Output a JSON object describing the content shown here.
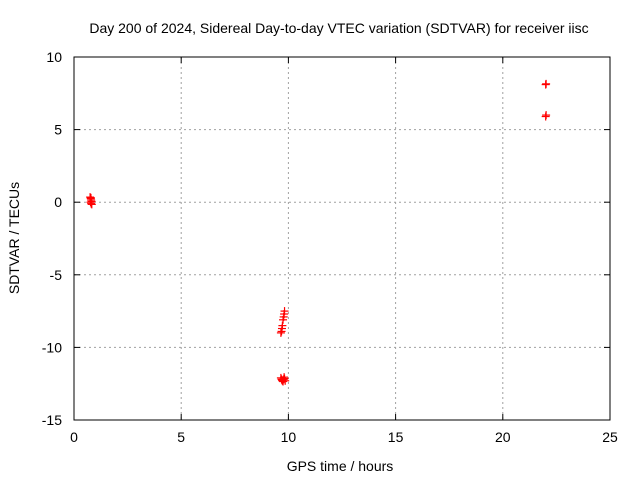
{
  "chart_data": {
    "type": "scatter",
    "title": "Day 200 of 2024, Sidereal Day-to-day VTEC variation (SDTVAR) for receiver iisc",
    "xlabel": "GPS time / hours",
    "ylabel": "SDTVAR / TECUs",
    "xlim": [
      0,
      25
    ],
    "ylim": [
      -15,
      10
    ],
    "x_ticks": [
      0,
      5,
      10,
      15,
      20,
      25
    ],
    "y_ticks": [
      -15,
      -10,
      -5,
      0,
      5,
      10
    ],
    "x_tick_labels": [
      "0",
      "5",
      "10",
      "15",
      "20",
      "25"
    ],
    "y_tick_labels": [
      "-15",
      "-10",
      "-5",
      "0",
      "5",
      "10"
    ],
    "grid": true,
    "marker": "plus",
    "series_color": "#ff0000",
    "points": [
      [
        0.75,
        0.35
      ],
      [
        0.78,
        0.25
      ],
      [
        0.8,
        0.15
      ],
      [
        0.82,
        0.05
      ],
      [
        0.77,
        0.0
      ],
      [
        0.8,
        -0.1
      ],
      [
        0.83,
        -0.15
      ],
      [
        0.79,
        0.3
      ],
      [
        9.65,
        -9.0
      ],
      [
        9.68,
        -8.9
      ],
      [
        9.7,
        -8.7
      ],
      [
        9.72,
        -8.5
      ],
      [
        9.75,
        -8.1
      ],
      [
        9.78,
        -7.9
      ],
      [
        9.8,
        -7.7
      ],
      [
        9.82,
        -7.5
      ],
      [
        9.65,
        -12.1
      ],
      [
        9.68,
        -12.2
      ],
      [
        9.7,
        -12.25
      ],
      [
        9.72,
        -12.3
      ],
      [
        9.75,
        -12.35
      ],
      [
        9.78,
        -12.2
      ],
      [
        9.8,
        -12.05
      ],
      [
        9.82,
        -12.15
      ],
      [
        9.85,
        -12.3
      ],
      [
        22.0,
        8.1
      ],
      [
        22.02,
        8.15
      ],
      [
        22.0,
        5.9
      ],
      [
        22.02,
        6.0
      ]
    ]
  }
}
